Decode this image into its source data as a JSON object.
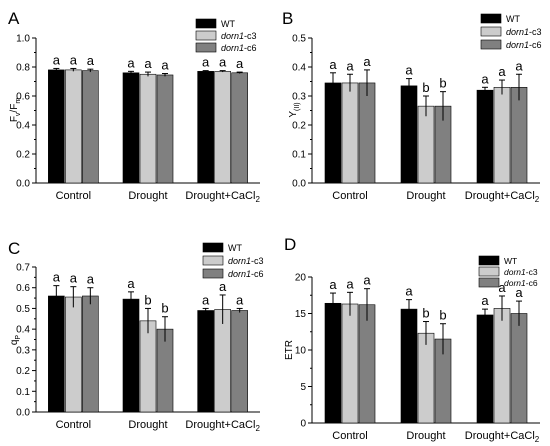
{
  "chart_data": [
    {
      "type": "bar",
      "panel_letter": "A",
      "ylabel": "Fv/Fm",
      "ylabel_main": "F",
      "ylabel_sub1": "v",
      "ylabel_mid": "/F",
      "ylabel_sub2": "m",
      "ylim": [
        0,
        1.0
      ],
      "yticks": [
        "0.0",
        "0.2",
        "0.4",
        "0.6",
        "0.8",
        "1.0"
      ],
      "categories": [
        "Control",
        "Drought",
        "Drought+CaCl2"
      ],
      "category_labels": [
        [
          "Control",
          ""
        ],
        [
          "Drought",
          ""
        ],
        [
          "Drought+CaCl",
          "2"
        ]
      ],
      "series": [
        {
          "name": "WT",
          "values": [
            0.78,
            0.76,
            0.77
          ],
          "errors": [
            0.01,
            0.01,
            0.005
          ],
          "letters": [
            "a",
            "a",
            "a"
          ]
        },
        {
          "name": "dorn1-c3",
          "values": [
            0.78,
            0.75,
            0.77
          ],
          "errors": [
            0.01,
            0.015,
            0.005
          ],
          "letters": [
            "a",
            "a",
            "a"
          ]
        },
        {
          "name": "dorn1-c6",
          "values": [
            0.775,
            0.745,
            0.76
          ],
          "errors": [
            0.01,
            0.01,
            0.005
          ],
          "letters": [
            "a",
            "a",
            "a"
          ]
        }
      ],
      "grid": false,
      "legend": "top-right"
    },
    {
      "type": "bar",
      "panel_letter": "B",
      "ylabel": "Y(II)",
      "ylabel_main": "Y",
      "ylabel_sub1": "(II)",
      "ylim": [
        0,
        0.5
      ],
      "yticks": [
        "0.0",
        "0.1",
        "0.2",
        "0.3",
        "0.4",
        "0.5"
      ],
      "categories": [
        "Control",
        "Drought",
        "Drought+CaCl2"
      ],
      "category_labels": [
        [
          "Control",
          ""
        ],
        [
          "Drought",
          ""
        ],
        [
          "Drought+CaCl",
          "2"
        ]
      ],
      "series": [
        {
          "name": "WT",
          "values": [
            0.345,
            0.335,
            0.32
          ],
          "errors": [
            0.035,
            0.025,
            0.01
          ],
          "letters": [
            "a",
            "a",
            "a"
          ]
        },
        {
          "name": "dorn1-c3",
          "values": [
            0.345,
            0.265,
            0.33
          ],
          "errors": [
            0.03,
            0.035,
            0.025
          ],
          "letters": [
            "a",
            "b",
            "a"
          ]
        },
        {
          "name": "dorn1-c6",
          "values": [
            0.345,
            0.265,
            0.33
          ],
          "errors": [
            0.045,
            0.05,
            0.045
          ],
          "letters": [
            "a",
            "b",
            "a"
          ]
        }
      ],
      "grid": false,
      "legend": "top-right"
    },
    {
      "type": "bar",
      "panel_letter": "C",
      "ylabel": "qP",
      "ylabel_main": "q",
      "ylabel_sub1": "P",
      "ylim": [
        0,
        0.7
      ],
      "yticks": [
        "0.0",
        "0.1",
        "0.2",
        "0.3",
        "0.4",
        "0.5",
        "0.6",
        "0.7"
      ],
      "categories": [
        "Control",
        "Drought",
        "Drought+CaCl2"
      ],
      "category_labels": [
        [
          "Control",
          ""
        ],
        [
          "Drought",
          ""
        ],
        [
          "Drought+CaCl",
          "2"
        ]
      ],
      "series": [
        {
          "name": "WT",
          "values": [
            0.56,
            0.545,
            0.49
          ],
          "errors": [
            0.05,
            0.035,
            0.01
          ],
          "letters": [
            "a",
            "a",
            "a"
          ]
        },
        {
          "name": "dorn1-c3",
          "values": [
            0.555,
            0.44,
            0.495
          ],
          "errors": [
            0.05,
            0.06,
            0.07
          ],
          "letters": [
            "a",
            "b",
            "a"
          ]
        },
        {
          "name": "dorn1-c6",
          "values": [
            0.56,
            0.4,
            0.49
          ],
          "errors": [
            0.04,
            0.06,
            0.01
          ],
          "letters": [
            "a",
            "b",
            "a"
          ]
        }
      ],
      "grid": false,
      "legend": "top-right"
    },
    {
      "type": "bar",
      "panel_letter": "D",
      "ylabel": "ETR",
      "ylabel_main": "ETR",
      "ylim": [
        0,
        20
      ],
      "yticks": [
        "0",
        "5",
        "10",
        "15",
        "20"
      ],
      "categories": [
        "Control",
        "Drought",
        "Drought+CaCl2"
      ],
      "category_labels": [
        [
          "Control",
          ""
        ],
        [
          "Drought",
          ""
        ],
        [
          "Drought+CaCl",
          "2"
        ]
      ],
      "series": [
        {
          "name": "WT",
          "values": [
            16.4,
            15.6,
            14.8
          ],
          "errors": [
            1.4,
            1.3,
            0.8
          ],
          "letters": [
            "a",
            "a",
            "a"
          ]
        },
        {
          "name": "dorn1-c3",
          "values": [
            16.3,
            12.3,
            15.7
          ],
          "errors": [
            1.6,
            1.6,
            1.7
          ],
          "letters": [
            "a",
            "b",
            "a"
          ]
        },
        {
          "name": "dorn1-c6",
          "values": [
            16.2,
            11.5,
            15.0
          ],
          "errors": [
            2.2,
            2.1,
            1.7
          ],
          "letters": [
            "a",
            "b",
            "a"
          ]
        }
      ],
      "grid": false,
      "legend": "top-right"
    }
  ],
  "colors": {
    "WT": "#000000",
    "dorn1-c3": "#cccccc",
    "dorn1-c6": "#808080"
  }
}
